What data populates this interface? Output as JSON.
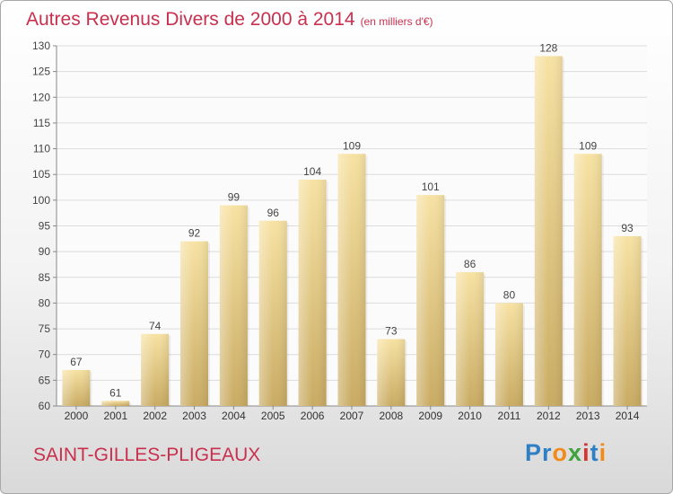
{
  "header": {
    "title": "Autres Revenus Divers de 2000 à 2014",
    "unit": "(en milliers d'€)"
  },
  "footer": {
    "commune": "SAINT-GILLES-PLIGEAUX",
    "logo_letters": [
      {
        "char": "P",
        "color": "#2e7fc3"
      },
      {
        "char": "r",
        "color": "#2e7fc3"
      },
      {
        "char": "o",
        "color": "#f28a1a"
      },
      {
        "char": "x",
        "color": "#3ea23e"
      },
      {
        "char": "i",
        "color": "#d8342f"
      },
      {
        "char": "t",
        "color": "#2e7fc3"
      },
      {
        "char": "i",
        "color": "#f28a1a"
      }
    ]
  },
  "chart_data": {
    "type": "bar",
    "categories": [
      "2000",
      "2001",
      "2002",
      "2003",
      "2004",
      "2005",
      "2006",
      "2007",
      "2008",
      "2009",
      "2010",
      "2011",
      "2012",
      "2013",
      "2014"
    ],
    "values": [
      67,
      61,
      74,
      92,
      99,
      96,
      104,
      109,
      73,
      101,
      86,
      80,
      128,
      109,
      93
    ],
    "ylim": [
      60,
      130
    ],
    "yticks": [
      60,
      65,
      70,
      75,
      80,
      85,
      90,
      95,
      100,
      105,
      110,
      115,
      120,
      125,
      130
    ],
    "grid": true,
    "bar_color": "#e6cc82",
    "label_color": "#444444"
  }
}
